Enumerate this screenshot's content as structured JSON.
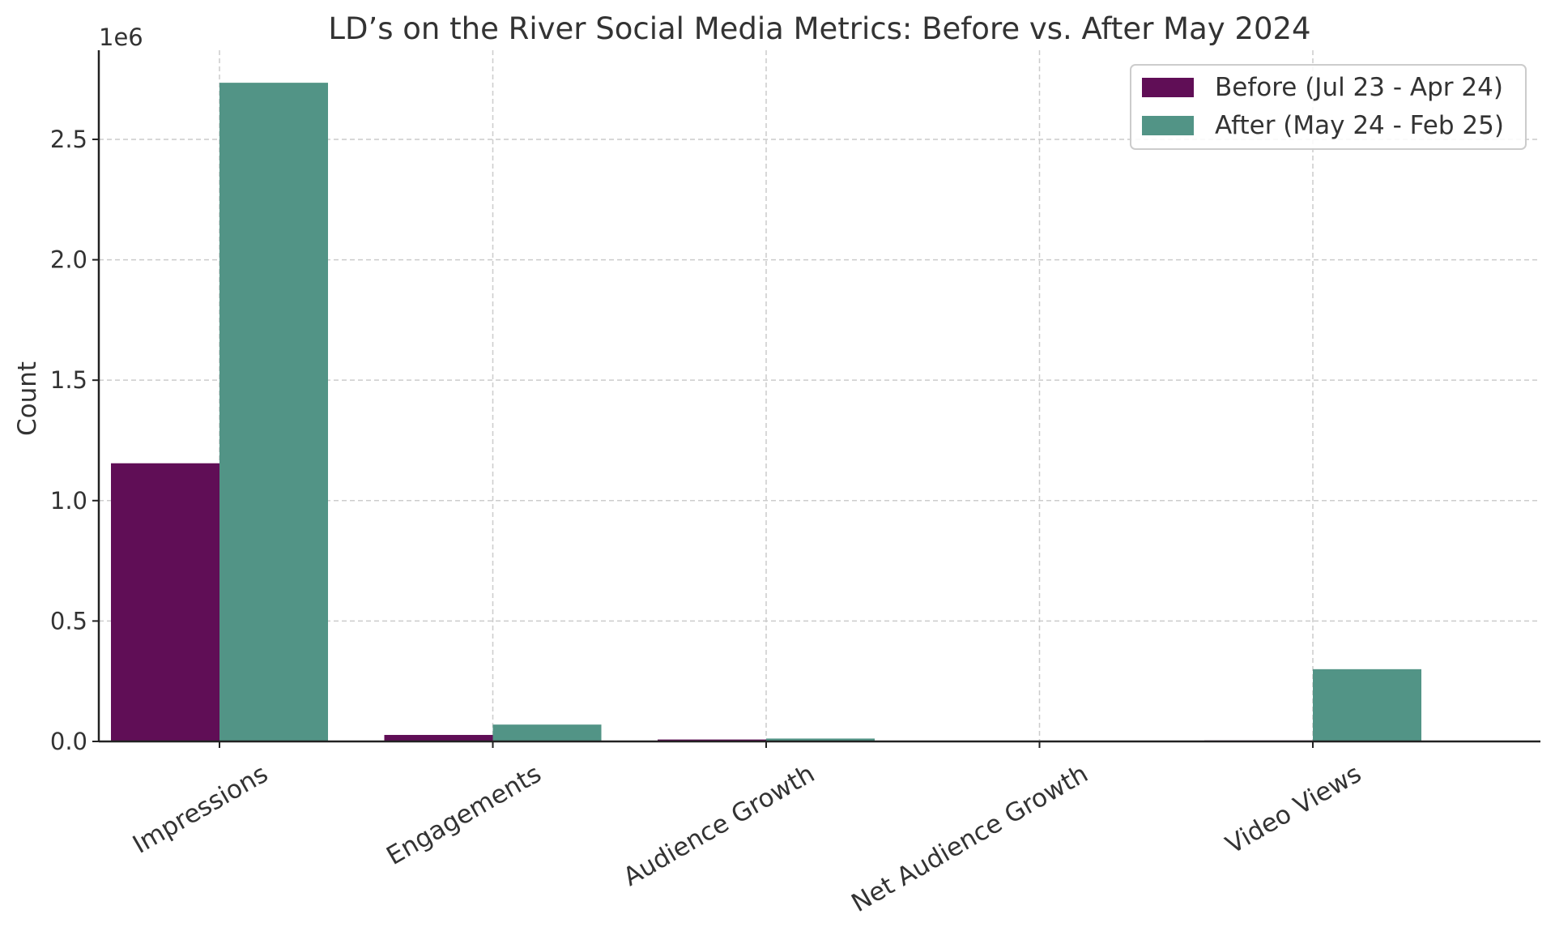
{
  "chart_data": {
    "type": "bar",
    "title": "LD’s on the River Social Media Metrics: Before vs. After May 2024",
    "xlabel": "",
    "ylabel": "Count",
    "y_exponent_label": "1e6",
    "y_scale": 1000000,
    "ylim": [
      0,
      2870000
    ],
    "yticks": [
      0,
      500000,
      1000000,
      1500000,
      2000000,
      2500000
    ],
    "ytick_labels": [
      "0.0",
      "0.5",
      "1.0",
      "1.5",
      "2.0",
      "2.5"
    ],
    "grid": true,
    "legend_position": "top-right",
    "categories": [
      "Impressions",
      "Engagements",
      "Audience Growth",
      "Net Audience Growth",
      "Video Views"
    ],
    "series": [
      {
        "name": "Before (Jul 23 - Apr 24)",
        "color": "#600e56",
        "values": [
          1155000,
          27000,
          8000,
          1000,
          4000
        ]
      },
      {
        "name": "After (May 24 - Feb 25)",
        "color": "#529486",
        "values": [
          2735000,
          70000,
          12000,
          1500,
          300000
        ]
      }
    ]
  }
}
